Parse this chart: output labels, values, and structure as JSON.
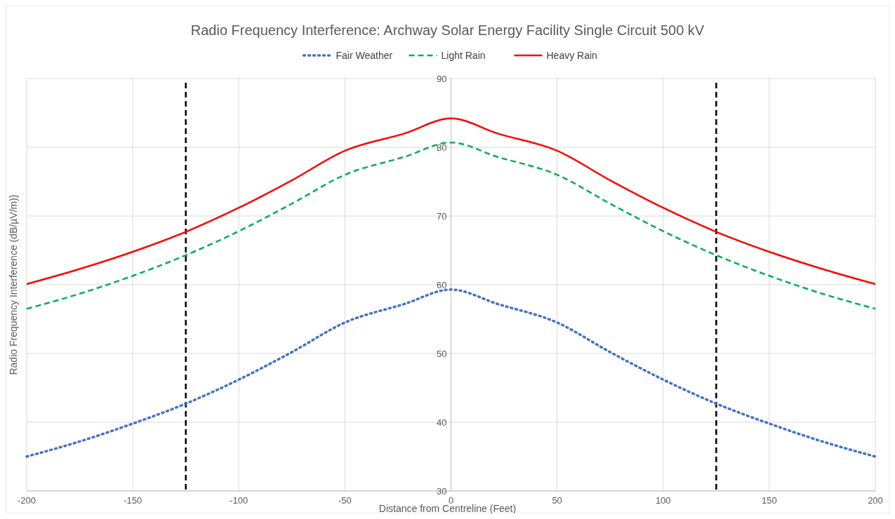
{
  "chart_data": {
    "type": "line",
    "title": "Radio Frequency Interference: Archway Solar Energy Facility Single Circuit 500 kV",
    "xlabel": "Distance from Centreline (Feet)",
    "ylabel": "Radio Frequency Interference (dB/µV/m))",
    "x": [
      -200,
      -175,
      -150,
      -125,
      -100,
      -75,
      -50,
      -22,
      0,
      22,
      50,
      75,
      100,
      125,
      150,
      175,
      200
    ],
    "series": [
      {
        "name": "Fair Weather",
        "color": "#4472c4",
        "line_style": "dotted",
        "values": [
          35.0,
          37.2,
          39.8,
          42.7,
          46.2,
          50.2,
          54.5,
          57.2,
          59.3,
          57.2,
          54.5,
          50.2,
          46.2,
          42.7,
          39.8,
          37.2,
          35.0
        ]
      },
      {
        "name": "Light Rain",
        "color": "#00b050",
        "line_style": "dashed",
        "values": [
          56.5,
          58.7,
          61.3,
          64.3,
          67.8,
          71.8,
          76.0,
          78.6,
          80.7,
          78.6,
          76.0,
          71.8,
          67.8,
          64.3,
          61.3,
          58.7,
          56.5
        ]
      },
      {
        "name": "Heavy Rain",
        "color": "#ff0000",
        "line_style": "solid",
        "values": [
          60.1,
          62.3,
          64.8,
          67.7,
          71.2,
          75.2,
          79.5,
          82.0,
          84.2,
          82.0,
          79.5,
          75.2,
          71.2,
          67.7,
          64.8,
          62.3,
          60.1
        ]
      }
    ],
    "xlim": [
      -200,
      200
    ],
    "xticks": [
      -200,
      -150,
      -100,
      -50,
      0,
      50,
      100,
      150,
      200
    ],
    "ylim": [
      30,
      90
    ],
    "yticks": [
      30,
      40,
      50,
      60,
      70,
      80,
      90
    ],
    "grid": true,
    "legend": "top",
    "ref_lines": [
      {
        "axis": "x",
        "value": -125,
        "color": "#000000",
        "line_style": "dashed"
      },
      {
        "axis": "x",
        "value": 125,
        "color": "#000000",
        "line_style": "dashed"
      }
    ]
  }
}
